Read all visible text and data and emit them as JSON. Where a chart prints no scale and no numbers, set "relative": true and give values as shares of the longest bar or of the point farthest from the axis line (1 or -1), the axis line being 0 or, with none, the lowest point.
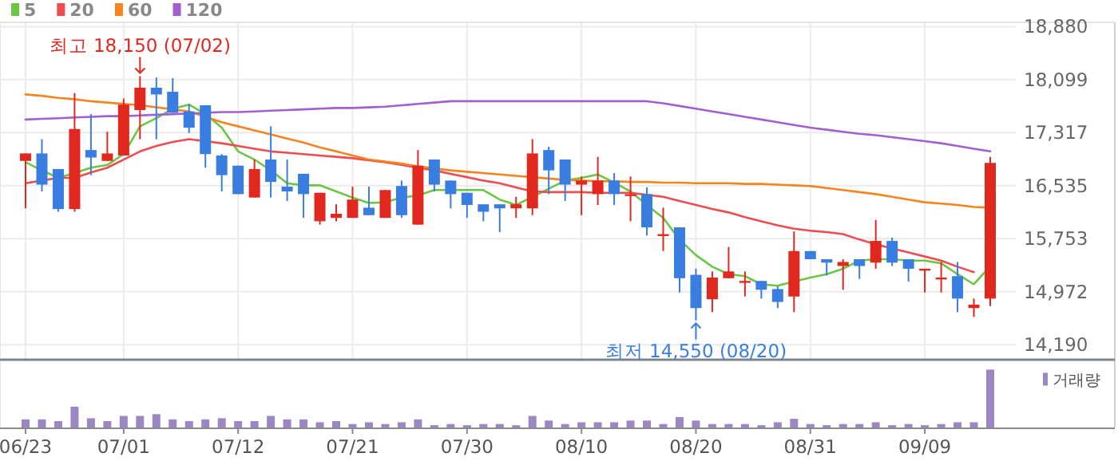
{
  "chart_data": [
    {
      "type": "candlestick",
      "categories": [
        null,
        null,
        null,
        null,
        null,
        null,
        null,
        null,
        null,
        null,
        null,
        null,
        null,
        null,
        null,
        null,
        null,
        null,
        null,
        null,
        null,
        null,
        null,
        null,
        null,
        null,
        null,
        null,
        null,
        null,
        null,
        null,
        null,
        null,
        null,
        null,
        null,
        null,
        null,
        null,
        null,
        null,
        null,
        null,
        null,
        null,
        null,
        null,
        null,
        null,
        null,
        null,
        null,
        null,
        null,
        null,
        null,
        null,
        null,
        null
      ],
      "ohlc": [
        [
          16900,
          17010,
          16200,
          17010
        ],
        [
          17010,
          17220,
          16450,
          16550
        ],
        [
          16780,
          16780,
          16150,
          16190
        ],
        [
          16190,
          17900,
          16150,
          17370
        ],
        [
          17060,
          17590,
          16690,
          16950
        ],
        [
          16900,
          17330,
          16900,
          17010
        ],
        [
          16980,
          17820,
          16980,
          17730
        ],
        [
          17650,
          18150,
          17220,
          17980
        ],
        [
          17980,
          18130,
          17220,
          17880
        ],
        [
          17920,
          18120,
          17610,
          17610
        ],
        [
          17630,
          17740,
          17310,
          17390
        ],
        [
          17720,
          17720,
          16800,
          17000
        ],
        [
          16980,
          17000,
          16450,
          16690
        ],
        [
          16830,
          16830,
          16410,
          16410
        ],
        [
          16360,
          16920,
          16360,
          16780
        ],
        [
          16920,
          17410,
          16360,
          16590
        ],
        [
          16520,
          16920,
          16310,
          16450
        ],
        [
          16710,
          16710,
          16060,
          16410
        ],
        [
          16010,
          16430,
          15960,
          16430
        ],
        [
          16060,
          16260,
          16010,
          16120
        ],
        [
          16060,
          16520,
          16060,
          16330
        ],
        [
          16210,
          16520,
          16100,
          16100
        ],
        [
          16060,
          16470,
          16060,
          16470
        ],
        [
          16530,
          16610,
          16060,
          16100
        ],
        [
          15960,
          17060,
          15960,
          16830
        ],
        [
          16920,
          16920,
          16450,
          16550
        ],
        [
          16610,
          16610,
          16200,
          16410
        ],
        [
          16430,
          16430,
          16060,
          16250
        ],
        [
          16260,
          16260,
          16010,
          16150
        ],
        [
          16260,
          16260,
          15850,
          16200
        ],
        [
          16200,
          16370,
          16060,
          16260
        ],
        [
          16200,
          17220,
          16100,
          17010
        ],
        [
          17060,
          17110,
          16410,
          16760
        ],
        [
          16920,
          16920,
          16310,
          16550
        ],
        [
          16550,
          16670,
          16100,
          16610
        ],
        [
          16410,
          16960,
          16250,
          16610
        ],
        [
          16610,
          16720,
          16250,
          16410
        ],
        [
          16410,
          16670,
          16010,
          16410
        ],
        [
          16410,
          16510,
          15800,
          15920
        ],
        [
          15820,
          16210,
          15570,
          15820
        ],
        [
          15920,
          15920,
          14960,
          15170
        ],
        [
          15220,
          15310,
          14550,
          14730
        ],
        [
          14860,
          15270,
          14670,
          15180
        ],
        [
          15170,
          15630,
          15170,
          15270
        ],
        [
          15130,
          15270,
          14900,
          15130
        ],
        [
          15130,
          15130,
          14870,
          15000
        ],
        [
          15010,
          15050,
          14730,
          14820
        ],
        [
          14900,
          15860,
          14670,
          15570
        ],
        [
          15570,
          15570,
          15450,
          15450
        ],
        [
          15450,
          15450,
          15210,
          15400
        ],
        [
          15350,
          15450,
          15000,
          15410
        ],
        [
          15450,
          15450,
          15160,
          15350
        ],
        [
          15400,
          16030,
          15310,
          15720
        ],
        [
          15720,
          15770,
          15350,
          15400
        ],
        [
          15450,
          15450,
          15120,
          15310
        ],
        [
          15310,
          15310,
          14960,
          15310
        ],
        [
          15180,
          15410,
          14960,
          15180
        ],
        [
          15200,
          15410,
          14670,
          14870
        ],
        [
          14730,
          14870,
          14600,
          14780
        ],
        [
          14870,
          16960,
          14760,
          16870
        ]
      ],
      "colors": [
        "#e0281e",
        "#3a7de0",
        "#3a7de0",
        "#e0281e",
        "#3a7de0",
        "#e0281e",
        "#e0281e",
        "#e0281e",
        "#3a7de0",
        "#3a7de0",
        "#3a7de0",
        "#3a7de0",
        "#3a7de0",
        "#3a7de0",
        "#e0281e",
        "#3a7de0",
        "#3a7de0",
        "#3a7de0",
        "#e0281e",
        "#e0281e",
        "#e0281e",
        "#3a7de0",
        "#e0281e",
        "#3a7de0",
        "#e0281e",
        "#3a7de0",
        "#3a7de0",
        "#3a7de0",
        "#3a7de0",
        "#3a7de0",
        "#e0281e",
        "#e0281e",
        "#3a7de0",
        "#3a7de0",
        "#e0281e",
        "#e0281e",
        "#3a7de0",
        "#e0281e",
        "#3a7de0",
        "#e0281e",
        "#3a7de0",
        "#3a7de0",
        "#e0281e",
        "#e0281e",
        "#e0281e",
        "#3a7de0",
        "#3a7de0",
        "#e0281e",
        "#3a7de0",
        "#3a7de0",
        "#e0281e",
        "#3a7de0",
        "#e0281e",
        "#3a7de0",
        "#3a7de0",
        "#e0281e",
        "#e0281e",
        "#3a7de0",
        "#e0281e",
        "#e0281e"
      ],
      "series": [
        {
          "name": "5",
          "type": "line",
          "color": "#6cc644",
          "values": [
            16880,
            16760,
            16650,
            16720,
            16800,
            16840,
            17000,
            17410,
            17530,
            17670,
            17730,
            17590,
            17390,
            17040,
            16920,
            16760,
            16570,
            16540,
            16540,
            16450,
            16360,
            16280,
            16290,
            16360,
            16390,
            16470,
            16470,
            16470,
            16470,
            16330,
            16250,
            16370,
            16490,
            16610,
            16650,
            16700,
            16580,
            16450,
            16250,
            16060,
            15740,
            15510,
            15340,
            15230,
            15200,
            15080,
            15060,
            15120,
            15180,
            15230,
            15310,
            15430,
            15450,
            15450,
            15430,
            15430,
            15390,
            15230,
            15080,
            15350
          ]
        },
        {
          "name": "20",
          "type": "line",
          "color": "#ee4c50",
          "values": [
            16570,
            16610,
            16650,
            16650,
            16730,
            16800,
            16920,
            17040,
            17120,
            17180,
            17220,
            17190,
            17160,
            17120,
            17080,
            17040,
            17020,
            17000,
            16980,
            16960,
            16940,
            16910,
            16880,
            16840,
            16800,
            16760,
            16710,
            16660,
            16610,
            16570,
            16510,
            16450,
            16440,
            16440,
            16440,
            16430,
            16430,
            16430,
            16400,
            16370,
            16310,
            16250,
            16190,
            16140,
            16070,
            16010,
            15950,
            15900,
            15870,
            15850,
            15820,
            15740,
            15670,
            15610,
            15550,
            15490,
            15430,
            15340,
            15260,
            null
          ]
        },
        {
          "name": "60",
          "type": "line",
          "color": "#f5841f",
          "values": [
            17880,
            17860,
            17830,
            17810,
            17780,
            17760,
            17740,
            17720,
            17690,
            17660,
            17630,
            17550,
            17470,
            17410,
            17350,
            17290,
            17230,
            17170,
            17100,
            17040,
            16980,
            16920,
            16890,
            16860,
            16820,
            16790,
            16760,
            16740,
            16720,
            16700,
            16680,
            16660,
            16640,
            16620,
            16610,
            16600,
            16600,
            16590,
            16590,
            16580,
            16580,
            16570,
            16570,
            16570,
            16560,
            16560,
            16550,
            16540,
            16530,
            16500,
            16470,
            16440,
            16410,
            16370,
            16330,
            16290,
            16270,
            16250,
            16220,
            16210
          ]
        },
        {
          "name": "120",
          "type": "line",
          "color": "#a060d0",
          "values": [
            17510,
            17520,
            17530,
            17540,
            17550,
            17560,
            17560,
            17570,
            17580,
            17590,
            17600,
            17610,
            17620,
            17620,
            17630,
            17640,
            17650,
            17660,
            17670,
            17680,
            17680,
            17690,
            17700,
            17720,
            17740,
            17760,
            17780,
            17780,
            17780,
            17780,
            17780,
            17780,
            17780,
            17780,
            17780,
            17780,
            17780,
            17780,
            17780,
            17750,
            17710,
            17670,
            17630,
            17590,
            17550,
            17510,
            17470,
            17430,
            17390,
            17360,
            17330,
            17300,
            17280,
            17250,
            17220,
            17190,
            17160,
            17120,
            17080,
            17040
          ]
        }
      ],
      "ylim": [
        13980,
        18880
      ],
      "yticks": [
        {
          "value": 18880,
          "label": "18,880"
        },
        {
          "value": 18099,
          "label": "18,099"
        },
        {
          "value": 17317,
          "label": "17,317"
        },
        {
          "value": 16535,
          "label": "16,535"
        },
        {
          "value": 15753,
          "label": "15,753"
        },
        {
          "value": 14972,
          "label": "14,972"
        },
        {
          "value": 14190,
          "label": "14,190"
        }
      ],
      "grid": true,
      "legend": "top left",
      "tick_labels": "y",
      "annotations": [
        {
          "text": "최고 18,150 (07/02)",
          "y": 18150
        },
        {
          "text": "최저 14,550 (08/20)",
          "y": 14550
        }
      ]
    },
    {
      "type": "bar",
      "relative": true,
      "categories": [
        "06/23",
        null,
        null,
        null,
        null,
        null,
        "07/01",
        null,
        null,
        null,
        null,
        null,
        null,
        "07/12",
        null,
        null,
        null,
        null,
        null,
        null,
        "07/21",
        null,
        null,
        null,
        null,
        null,
        null,
        "07/30",
        null,
        null,
        null,
        null,
        null,
        null,
        "08/10",
        null,
        null,
        null,
        null,
        null,
        null,
        "08/20",
        null,
        null,
        null,
        null,
        null,
        null,
        "08/31",
        null,
        null,
        null,
        null,
        null,
        null,
        "09/09",
        null,
        null,
        null,
        null
      ],
      "series": [
        {
          "name": "거래량",
          "color": "#9d86c4",
          "values": [
            0.14,
            0.14,
            0.11,
            0.36,
            0.16,
            0.11,
            0.2,
            0.2,
            0.23,
            0.14,
            0.11,
            0.14,
            0.16,
            0.11,
            0.11,
            0.2,
            0.14,
            0.14,
            0.09,
            0.11,
            0.06,
            0.09,
            0.06,
            0.09,
            0.14,
            0.04,
            0.06,
            0.04,
            0.06,
            0.06,
            0.04,
            0.2,
            0.12,
            0.06,
            0.09,
            0.09,
            0.09,
            0.12,
            0.12,
            0.06,
            0.18,
            0.12,
            0.06,
            0.06,
            0.06,
            0.04,
            0.09,
            0.15,
            0.06,
            0.04,
            0.06,
            0.06,
            0.09,
            0.04,
            0.06,
            0.04,
            0.06,
            0.09,
            0.09,
            1
          ]
        }
      ],
      "legend": "top right",
      "tick_labels": "x",
      "grid": false
    }
  ]
}
